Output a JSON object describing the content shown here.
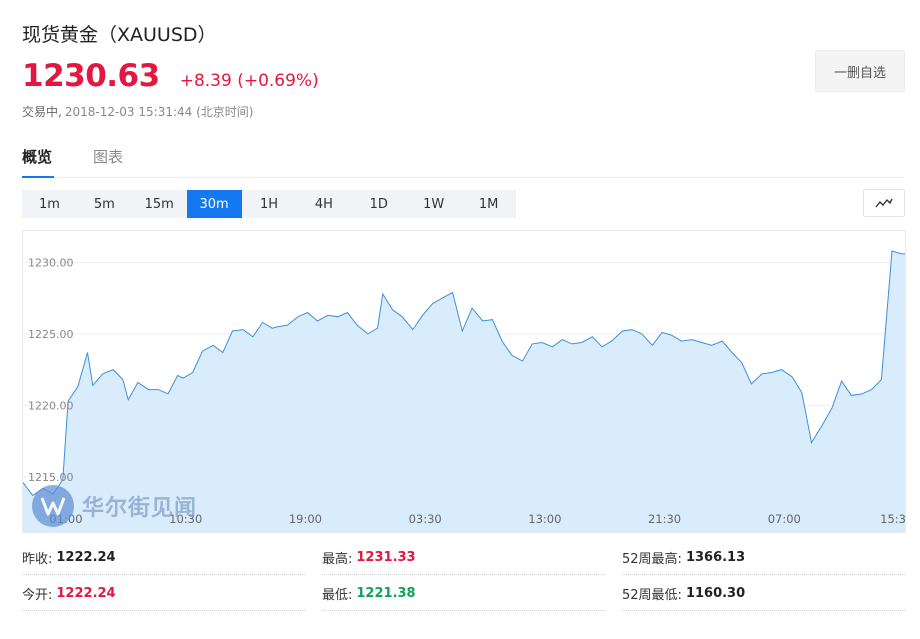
{
  "header": {
    "title": "现货黄金（XAUUSD）",
    "price": "1230.63",
    "change": "+8.39 (+0.69%)",
    "status": "交易中,",
    "timestamp": "2018-12-03 15:31:44 (北京时间)",
    "watch_button": "一删自选",
    "price_color": "#e3173f"
  },
  "tabs": [
    {
      "label": "概览",
      "active": true
    },
    {
      "label": "图表",
      "active": false
    }
  ],
  "ranges": [
    {
      "label": "1m",
      "active": false
    },
    {
      "label": "5m",
      "active": false
    },
    {
      "label": "15m",
      "active": false
    },
    {
      "label": "30m",
      "active": true
    },
    {
      "label": "1H",
      "active": false
    },
    {
      "label": "4H",
      "active": false
    },
    {
      "label": "1D",
      "active": false
    },
    {
      "label": "1W",
      "active": false
    },
    {
      "label": "1M",
      "active": false
    }
  ],
  "chart_type_icon": "line-chart-icon",
  "accent_color": "#1478f0",
  "watermark": {
    "text": "华尔街见闻",
    "icon": "wallstreetcn-logo-icon"
  },
  "chart_data": {
    "type": "area",
    "title": "",
    "xlabel": "",
    "ylabel": "",
    "yticks": [
      "1230.00",
      "1225.00",
      "1220.00",
      "1215.00"
    ],
    "xticks": [
      "01:00",
      "10:30",
      "19:00",
      "03:30",
      "13:00",
      "21:30",
      "07:00",
      "15:3"
    ],
    "ylim": [
      1211.0,
      1232.2
    ],
    "xlim": [
      0,
      100
    ],
    "grid": true,
    "line_color": "#3d8fe0",
    "fill_color": "#d9ecfb",
    "x": [
      0,
      1.1,
      2.3,
      3.4,
      4.5,
      5.1,
      6.2,
      7.3,
      7.9,
      9.0,
      10.2,
      11.3,
      11.9,
      13.0,
      14.2,
      15.3,
      16.4,
      17.5,
      18.1,
      19.2,
      20.3,
      21.5,
      22.6,
      23.7,
      24.9,
      26.0,
      27.1,
      28.2,
      28.8,
      29.9,
      31.1,
      32.2,
      33.3,
      34.5,
      35.6,
      36.7,
      37.8,
      39.0,
      40.1,
      40.7,
      41.8,
      42.9,
      44.1,
      45.2,
      46.3,
      47.4,
      48.6,
      49.7,
      50.8,
      52.0,
      53.1,
      54.2,
      55.3,
      56.5,
      57.6,
      58.7,
      59.9,
      61.0,
      62.1,
      63.2,
      64.4,
      65.5,
      66.6,
      67.8,
      68.9,
      70.0,
      71.2,
      72.3,
      73.4,
      74.5,
      75.7,
      76.8,
      77.9,
      79.1,
      80.2,
      81.3,
      82.4,
      83.6,
      84.7,
      85.8,
      87.0,
      88.1,
      89.2,
      90.4,
      91.5,
      92.6,
      93.7,
      94.9,
      96.0,
      97.1,
      98.3,
      99.4,
      100
    ],
    "values": [
      1214.6,
      1213.7,
      1214.2,
      1213.8,
      1214.8,
      1220.3,
      1221.3,
      1223.7,
      1221.4,
      1222.2,
      1222.5,
      1221.8,
      1220.4,
      1221.6,
      1221.1,
      1221.1,
      1220.8,
      1222.1,
      1221.9,
      1222.3,
      1223.8,
      1224.2,
      1223.7,
      1225.2,
      1225.3,
      1224.8,
      1225.8,
      1225.4,
      1225.5,
      1225.6,
      1226.2,
      1226.5,
      1225.9,
      1226.3,
      1226.2,
      1226.5,
      1225.6,
      1225.0,
      1225.4,
      1227.8,
      1226.7,
      1226.2,
      1225.3,
      1226.3,
      1227.1,
      1227.5,
      1227.9,
      1225.2,
      1226.8,
      1225.9,
      1226.0,
      1224.5,
      1223.5,
      1223.1,
      1224.3,
      1224.4,
      1224.1,
      1224.6,
      1224.3,
      1224.4,
      1224.8,
      1224.1,
      1224.5,
      1225.2,
      1225.3,
      1225.0,
      1224.2,
      1225.1,
      1224.9,
      1224.5,
      1224.6,
      1224.4,
      1224.2,
      1224.5,
      1223.7,
      1223.0,
      1221.5,
      1222.2,
      1222.3,
      1222.5,
      1222.0,
      1220.9,
      1217.4,
      1218.6,
      1219.8,
      1221.7,
      1220.7,
      1220.8,
      1221.1,
      1221.8,
      1230.8,
      1230.6,
      1230.6
    ]
  },
  "stats": [
    {
      "label": "昨收:",
      "value": "1222.24",
      "tone": ""
    },
    {
      "label": "最高:",
      "value": "1231.33",
      "tone": "up"
    },
    {
      "label": "52周最高:",
      "value": "1366.13",
      "tone": ""
    },
    {
      "label": "今开:",
      "value": "1222.24",
      "tone": "up"
    },
    {
      "label": "最低:",
      "value": "1221.38",
      "tone": "down"
    },
    {
      "label": "52周最低:",
      "value": "1160.30",
      "tone": ""
    }
  ]
}
